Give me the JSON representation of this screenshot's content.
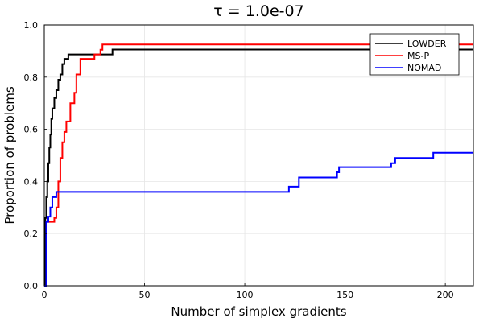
{
  "chart_data": {
    "type": "line",
    "step": true,
    "title": "τ = 1.0e-07",
    "xlabel": "Number of simplex gradients",
    "ylabel": "Proportion of problems",
    "xlim": [
      0,
      214
    ],
    "ylim": [
      0,
      1.0
    ],
    "xticks": [
      0,
      50,
      100,
      150,
      200
    ],
    "xtick_labels": [
      "0",
      "50",
      "100",
      "150",
      "200"
    ],
    "yticks": [
      0,
      0.2,
      0.4,
      0.6,
      0.8,
      1.0
    ],
    "ytick_labels": [
      "0.0",
      "0.2",
      "0.4",
      "0.6",
      "0.8",
      "1.0"
    ],
    "grid": true,
    "legend_position": "top-right",
    "series": [
      {
        "name": "LOWDER",
        "color": "#000000",
        "x": [
          0,
          0.5,
          1,
          1.5,
          2,
          2.5,
          3,
          3.5,
          4,
          5,
          6,
          7,
          8,
          9,
          10,
          11,
          12,
          34,
          214
        ],
        "y": [
          0,
          0.26,
          0.34,
          0.4,
          0.47,
          0.53,
          0.58,
          0.64,
          0.68,
          0.72,
          0.75,
          0.79,
          0.81,
          0.85,
          0.87,
          0.87,
          0.887,
          0.906,
          0.906
        ]
      },
      {
        "name": "MS-P",
        "color": "#ff0000",
        "x": [
          0,
          1,
          4,
          5,
          6,
          7,
          8,
          9,
          10,
          11,
          13,
          15,
          16,
          18,
          19,
          25,
          27,
          28,
          29,
          214
        ],
        "y": [
          0,
          0.245,
          0.245,
          0.26,
          0.3,
          0.4,
          0.49,
          0.55,
          0.59,
          0.63,
          0.7,
          0.74,
          0.81,
          0.87,
          0.87,
          0.887,
          0.887,
          0.905,
          0.925,
          0.925
        ]
      },
      {
        "name": "NOMAD",
        "color": "#0000ff",
        "x": [
          0,
          1,
          2,
          3,
          4,
          5,
          6,
          7,
          119,
          122,
          127,
          141,
          146,
          147,
          173,
          175,
          194,
          214
        ],
        "y": [
          0,
          0.245,
          0.265,
          0.3,
          0.34,
          0.34,
          0.36,
          0.36,
          0.36,
          0.38,
          0.415,
          0.415,
          0.435,
          0.455,
          0.47,
          0.49,
          0.51,
          0.51
        ]
      }
    ]
  }
}
